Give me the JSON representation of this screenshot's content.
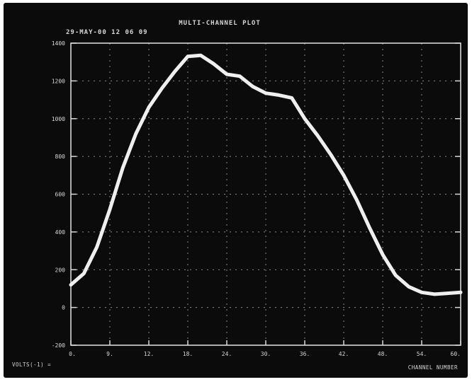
{
  "chart_data": {
    "type": "line",
    "title": "MULTI-CHANNEL PLOT",
    "subtitle": "29-MAY-00   12 06 09",
    "xlabel": "CHANNEL NUMBER",
    "ylabel": "VOLTS(-1) =",
    "xlim": [
      0,
      60
    ],
    "ylim": [
      -200,
      1400
    ],
    "x_ticks": [
      "0.",
      "9.",
      "12.",
      "18.",
      "24.",
      "30.",
      "36.",
      "42.",
      "48.",
      "54.",
      "60."
    ],
    "y_ticks": [
      "1400",
      "1200",
      "1000",
      "800",
      "600",
      "400",
      "200",
      "0",
      "-200"
    ],
    "grid": true,
    "series": [
      {
        "x": [
          0,
          2,
          4,
          6,
          8,
          10,
          12,
          14,
          16,
          18,
          20,
          22,
          24,
          26,
          28,
          30,
          32,
          34,
          36,
          38,
          40,
          42,
          44,
          46,
          48,
          50,
          52,
          54,
          56,
          58,
          60
        ],
        "y": [
          120,
          180,
          320,
          520,
          740,
          920,
          1060,
          1160,
          1250,
          1330,
          1335,
          1290,
          1235,
          1225,
          1170,
          1135,
          1125,
          1110,
          1000,
          910,
          810,
          700,
          570,
          420,
          280,
          170,
          110,
          80,
          70,
          75,
          80
        ]
      }
    ]
  }
}
